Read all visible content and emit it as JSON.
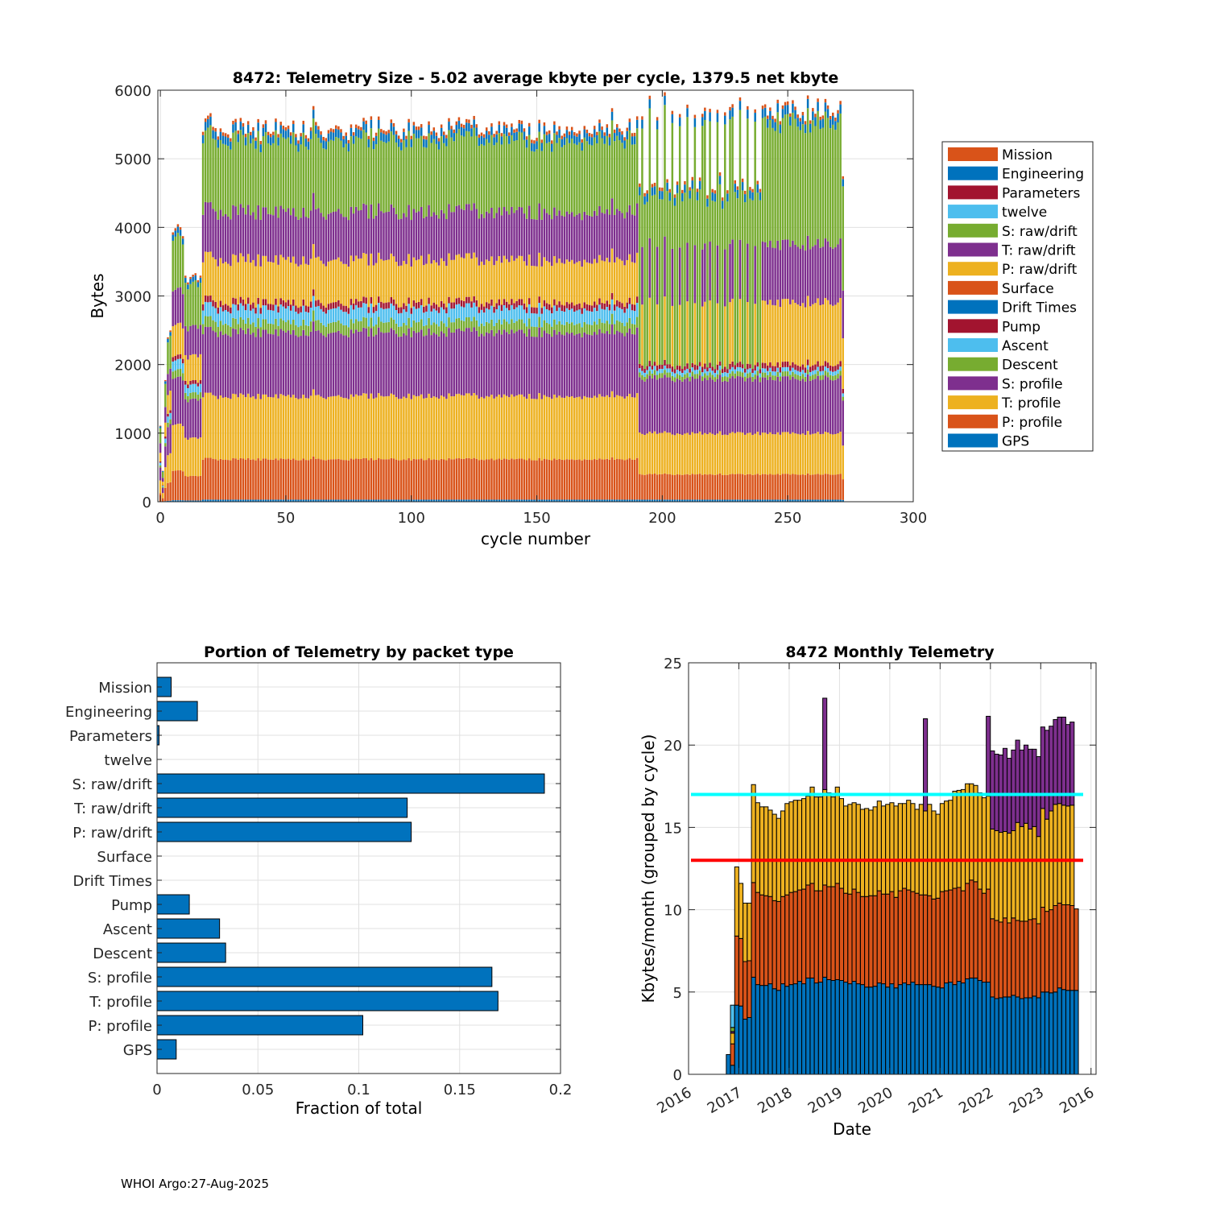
{
  "figure": {
    "footer": "WHOI Argo:27-Aug-2025"
  },
  "chart_data": [
    {
      "id": "telemetry-size",
      "type": "bar",
      "stacked": true,
      "title": "8472: Telemetry Size - 5.02 average kbyte per cycle, 1379.5 net kbyte",
      "xlabel": "cycle number",
      "ylabel": "Bytes",
      "xlim": [
        -1,
        300
      ],
      "ylim": [
        0,
        6000
      ],
      "xticks": [
        0,
        50,
        100,
        150,
        200,
        250,
        300
      ],
      "yticks": [
        0,
        1000,
        2000,
        3000,
        4000,
        5000,
        6000
      ],
      "grid": true,
      "legend_position": "outside-right",
      "n_cycles": 273,
      "series_order_bottom_to_top": [
        "GPS",
        "P: profile",
        "T: profile",
        "S: profile",
        "Descent",
        "Ascent",
        "Pump",
        "Drift Times",
        "Surface",
        "P: raw/drift",
        "T: raw/drift",
        "S: raw/drift",
        "twelve",
        "Parameters",
        "Engineering",
        "Mission"
      ],
      "legend": [
        {
          "name": "Mission",
          "color": "#D95319"
        },
        {
          "name": "Engineering",
          "color": "#0072BD"
        },
        {
          "name": "Parameters",
          "color": "#A2142F"
        },
        {
          "name": "twelve",
          "color": "#4DBEEE"
        },
        {
          "name": "S: raw/drift",
          "color": "#77AC30"
        },
        {
          "name": "T: raw/drift",
          "color": "#7E2F8E"
        },
        {
          "name": "P: raw/drift",
          "color": "#EDB120"
        },
        {
          "name": "Surface",
          "color": "#D95319"
        },
        {
          "name": "Drift Times",
          "color": "#0072BD"
        },
        {
          "name": "Pump",
          "color": "#A2142F"
        },
        {
          "name": "Ascent",
          "color": "#4DBEEE"
        },
        {
          "name": "Descent",
          "color": "#77AC30"
        },
        {
          "name": "S: profile",
          "color": "#7E2F8E"
        },
        {
          "name": "T: profile",
          "color": "#EDB120"
        },
        {
          "name": "P: profile",
          "color": "#D95319"
        },
        {
          "name": "GPS",
          "color": "#0072BD"
        }
      ],
      "typical_cycle_bytes": {
        "cycles_20_190": {
          "GPS": 30,
          "P: profile": 590,
          "T: profile": 920,
          "S: profile": 930,
          "Descent": 150,
          "Ascent": 200,
          "Pump": 90,
          "P: raw/drift": 620,
          "T: raw/drift": 700,
          "S: raw/drift": 1050,
          "Engineering": 120,
          "Mission": 50,
          "total": 5300
        },
        "cycles_191_273_short": {
          "GPS": 30,
          "P: profile": 370,
          "T: profile": 600,
          "S: profile": 800,
          "Descent": 70,
          "Ascent": 60,
          "Pump": 60,
          "S: raw/drift": 2450,
          "Engineering": 120,
          "Mission": 50,
          "total": 4500
        },
        "cycles_191_273_long": {
          "GPS": 30,
          "P: profile": 370,
          "T: profile": 600,
          "S: profile": 800,
          "Descent": 70,
          "Ascent": 60,
          "Pump": 80,
          "P: raw/drift": 900,
          "T: raw/drift": 850,
          "S: raw/drift": 1800,
          "Engineering": 130,
          "Mission": 50,
          "total": 5700
        }
      },
      "early_cycle_totals": [
        {
          "cycle": 0,
          "total": 1100
        },
        {
          "cycle": 1,
          "total": 450
        },
        {
          "cycle": 2,
          "total": 1780
        },
        {
          "cycle": 3,
          "total": 2400
        },
        {
          "cycle": 4,
          "total": 2500
        },
        {
          "cycle": 5,
          "total": 3950
        },
        {
          "cycle": 6,
          "total": 3980
        },
        {
          "cycle": 7,
          "total": 4020
        },
        {
          "cycle": 8,
          "total": 4030
        },
        {
          "cycle": 9,
          "total": 3900
        },
        {
          "cycle": 10,
          "total": 3300
        },
        {
          "cycle": 11,
          "total": 3200
        },
        {
          "cycle": 12,
          "total": 3300
        },
        {
          "cycle": 13,
          "total": 3320
        },
        {
          "cycle": 14,
          "total": 3320
        },
        {
          "cycle": 15,
          "total": 3250
        },
        {
          "cycle": 16,
          "total": 3320
        },
        {
          "cycle": 18,
          "total": 5630
        },
        {
          "cycle": 19,
          "total": 5620
        },
        {
          "cycle": 20,
          "total": 5630
        }
      ],
      "notable_peaks": [
        {
          "cycle": 61,
          "total": 5800
        },
        {
          "cycle": 180,
          "total": 5700
        },
        {
          "cycle": 217,
          "total": 5750
        },
        {
          "cycle": 227,
          "total": 5740
        },
        {
          "cycle": 246,
          "total": 5810
        },
        {
          "cycle": 258,
          "total": 5920
        },
        {
          "cycle": 265,
          "total": 5860
        },
        {
          "cycle": 271,
          "total": 5860
        }
      ],
      "last_cycle_total": 4700
    },
    {
      "id": "portion-by-packet",
      "type": "bar",
      "orientation": "horizontal",
      "title": "Portion of Telemetry by packet type",
      "xlabel": "Fraction of total",
      "ylabel": "",
      "xlim": [
        0,
        0.2
      ],
      "xticks": [
        0,
        0.05,
        0.1,
        0.15,
        0.2
      ],
      "xtick_labels": [
        "0",
        "0.05",
        "0.1",
        "0.15",
        "0.2"
      ],
      "grid": true,
      "bar_color": "#0072BD",
      "categories": [
        "Mission",
        "Engineering",
        "Parameters",
        "twelve",
        "S: raw/drift",
        "T: raw/drift",
        "P: raw/drift",
        "Surface",
        "Drift Times",
        "Pump",
        "Ascent",
        "Descent",
        "S: profile",
        "T: profile",
        "P: profile",
        "GPS"
      ],
      "values": [
        0.007,
        0.02,
        0.001,
        0.0,
        0.192,
        0.124,
        0.126,
        0.0,
        0.0,
        0.016,
        0.031,
        0.034,
        0.166,
        0.169,
        0.102,
        0.0095
      ]
    },
    {
      "id": "monthly-telemetry",
      "type": "bar",
      "stacked": true,
      "title": "8472 Monthly Telemetry",
      "xlabel": "Date",
      "ylabel": "Kbytes/month (grouped by cycle)",
      "ylim": [
        0,
        25
      ],
      "yticks": [
        0,
        5,
        10,
        15,
        20,
        25
      ],
      "xlim_years": [
        2016,
        2024.1
      ],
      "xtick_labels": [
        "2016",
        "2017",
        "2018",
        "2019",
        "2020",
        "2021",
        "2022",
        "2023",
        "2016"
      ],
      "grid": true,
      "reference_lines": [
        {
          "value": 17,
          "color": "#00FFFF"
        },
        {
          "value": 13,
          "color": "#FF0000"
        }
      ],
      "segment_colors": [
        "#0072BD",
        "#D95319",
        "#EDB120",
        "#7E2F8E",
        "#77AC30",
        "#4DBEEE"
      ],
      "months": [
        {
          "x": 2016.75,
          "segs": [
            1.2
          ]
        },
        {
          "x": 2016.833,
          "segs": [
            0.55,
            1.85,
            2.5,
            2.6,
            2.85,
            4.2
          ]
        },
        {
          "x": 2016.917,
          "segs": [
            4.2,
            4.2,
            4.2
          ]
        },
        {
          "x": 2017.0,
          "segs": [
            4.15,
            4.1,
            3.35
          ]
        },
        {
          "x": 2017.083,
          "segs": [
            3.35,
            3.5,
            3.55
          ]
        },
        {
          "x": 2017.167,
          "segs": [
            3.45,
            3.45,
            3.5
          ]
        },
        {
          "x": 2017.25,
          "segs": [
            5.9,
            5.75,
            5.95
          ]
        },
        {
          "x": 2017.333,
          "segs": [
            5.45,
            5.6,
            5.45
          ]
        },
        {
          "x": 2017.417,
          "segs": [
            5.4,
            5.5,
            5.35
          ]
        },
        {
          "x": 2017.5,
          "segs": [
            5.4,
            5.45,
            5.4
          ]
        },
        {
          "x": 2017.583,
          "segs": [
            5.5,
            5.3,
            5.25
          ]
        },
        {
          "x": 2017.667,
          "segs": [
            5.2,
            5.35,
            5.25
          ]
        },
        {
          "x": 2017.75,
          "segs": [
            5.1,
            5.4,
            5.05
          ]
        },
        {
          "x": 2017.833,
          "segs": [
            5.5,
            5.3,
            5.2
          ]
        },
        {
          "x": 2017.917,
          "segs": [
            5.35,
            5.55,
            5.55
          ]
        },
        {
          "x": 2018.0,
          "segs": [
            5.45,
            5.6,
            5.5
          ]
        },
        {
          "x": 2018.083,
          "segs": [
            5.5,
            5.6,
            5.55
          ]
        },
        {
          "x": 2018.167,
          "segs": [
            5.65,
            5.55,
            5.45
          ]
        },
        {
          "x": 2018.25,
          "segs": [
            5.5,
            5.75,
            5.5
          ]
        },
        {
          "x": 2018.333,
          "segs": [
            5.85,
            5.65,
            5.4
          ]
        },
        {
          "x": 2018.417,
          "segs": [
            5.85,
            5.75,
            5.85
          ]
        },
        {
          "x": 2018.5,
          "segs": [
            5.55,
            5.6,
            5.7
          ]
        },
        {
          "x": 2018.583,
          "segs": [
            5.6,
            5.55,
            5.7
          ]
        },
        {
          "x": 2018.667,
          "segs": [
            5.9,
            5.6,
            5.8,
            5.55
          ]
        },
        {
          "x": 2018.75,
          "segs": [
            5.75,
            5.65,
            5.7
          ]
        },
        {
          "x": 2018.833,
          "segs": [
            5.7,
            5.7,
            5.45
          ]
        },
        {
          "x": 2018.917,
          "segs": [
            5.75,
            5.85,
            5.85
          ]
        },
        {
          "x": 2019.0,
          "segs": [
            5.7,
            5.6,
            5.45
          ]
        },
        {
          "x": 2019.083,
          "segs": [
            5.6,
            5.4,
            5.3
          ]
        },
        {
          "x": 2019.167,
          "segs": [
            5.5,
            5.45,
            5.45
          ]
        },
        {
          "x": 2019.25,
          "segs": [
            5.65,
            5.6,
            5.25
          ]
        },
        {
          "x": 2019.333,
          "segs": [
            5.5,
            5.55,
            5.35
          ]
        },
        {
          "x": 2019.417,
          "segs": [
            5.45,
            5.35,
            5.3
          ]
        },
        {
          "x": 2019.5,
          "segs": [
            5.3,
            5.5,
            5.35
          ]
        },
        {
          "x": 2019.583,
          "segs": [
            5.3,
            5.55,
            5.2
          ]
        },
        {
          "x": 2019.667,
          "segs": [
            5.35,
            5.5,
            5.4
          ]
        },
        {
          "x": 2019.75,
          "segs": [
            5.55,
            5.6,
            5.45
          ]
        },
        {
          "x": 2019.833,
          "segs": [
            5.5,
            5.45,
            5.35
          ]
        },
        {
          "x": 2019.917,
          "segs": [
            5.3,
            5.65,
            5.45
          ]
        },
        {
          "x": 2020.0,
          "segs": [
            5.5,
            5.6,
            5.4
          ]
        },
        {
          "x": 2020.083,
          "segs": [
            5.25,
            5.5,
            5.55
          ]
        },
        {
          "x": 2020.167,
          "segs": [
            5.45,
            5.7,
            5.3
          ]
        },
        {
          "x": 2020.25,
          "segs": [
            5.55,
            5.75,
            5.15
          ]
        },
        {
          "x": 2020.333,
          "segs": [
            5.45,
            5.75,
            5.45
          ]
        },
        {
          "x": 2020.417,
          "segs": [
            5.6,
            5.5,
            5.35
          ]
        },
        {
          "x": 2020.5,
          "segs": [
            5.45,
            5.55,
            5.1
          ]
        },
        {
          "x": 2020.583,
          "segs": [
            5.45,
            5.45,
            5.5
          ]
        },
        {
          "x": 2020.667,
          "segs": [
            5.45,
            5.45,
            5.1,
            5.6
          ]
        },
        {
          "x": 2020.75,
          "segs": [
            5.45,
            5.4,
            5.55
          ]
        },
        {
          "x": 2020.833,
          "segs": [
            5.35,
            5.3,
            5.35
          ]
        },
        {
          "x": 2020.917,
          "segs": [
            5.3,
            5.4,
            5.1
          ]
        },
        {
          "x": 2021.0,
          "segs": [
            5.25,
            5.85,
            5.35
          ]
        },
        {
          "x": 2021.083,
          "segs": [
            5.55,
            5.6,
            5.45
          ]
        },
        {
          "x": 2021.167,
          "segs": [
            5.6,
            5.6,
            5.45
          ]
        },
        {
          "x": 2021.25,
          "segs": [
            5.45,
            5.85,
            5.9
          ]
        },
        {
          "x": 2021.333,
          "segs": [
            5.65,
            5.7,
            5.9
          ]
        },
        {
          "x": 2021.417,
          "segs": [
            5.55,
            5.6,
            6.15
          ]
        },
        {
          "x": 2021.5,
          "segs": [
            5.8,
            5.8,
            6.05
          ]
        },
        {
          "x": 2021.583,
          "segs": [
            5.85,
            5.95,
            5.85
          ]
        },
        {
          "x": 2021.667,
          "segs": [
            5.85,
            5.85,
            5.85
          ]
        },
        {
          "x": 2021.75,
          "segs": [
            5.7,
            5.55,
            5.85
          ]
        },
        {
          "x": 2021.833,
          "segs": [
            5.6,
            5.4,
            5.8
          ]
        },
        {
          "x": 2021.917,
          "segs": [
            5.6,
            5.65,
            5.65,
            4.85
          ]
        },
        {
          "x": 2022.0,
          "segs": [
            4.7,
            4.75,
            5.45,
            4.75
          ]
        },
        {
          "x": 2022.083,
          "segs": [
            4.6,
            4.75,
            5.45,
            4.65
          ]
        },
        {
          "x": 2022.167,
          "segs": [
            4.65,
            4.6,
            5.45,
            4.7
          ]
        },
        {
          "x": 2022.25,
          "segs": [
            4.7,
            4.8,
            5.25,
            5.05
          ]
        },
        {
          "x": 2022.333,
          "segs": [
            4.7,
            4.5,
            5.45,
            4.55
          ]
        },
        {
          "x": 2022.417,
          "segs": [
            4.8,
            4.7,
            5.3,
            4.9
          ]
        },
        {
          "x": 2022.5,
          "segs": [
            4.7,
            4.65,
            5.95,
            5.0
          ]
        },
        {
          "x": 2022.583,
          "segs": [
            4.6,
            4.7,
            5.75,
            4.65
          ]
        },
        {
          "x": 2022.667,
          "segs": [
            4.65,
            4.65,
            5.95,
            4.75
          ]
        },
        {
          "x": 2022.75,
          "segs": [
            4.65,
            4.75,
            5.5,
            4.85
          ]
        },
        {
          "x": 2022.833,
          "segs": [
            4.75,
            4.7,
            5.6,
            4.7
          ]
        },
        {
          "x": 2022.917,
          "segs": [
            4.65,
            4.5,
            5.3,
            4.85
          ]
        },
        {
          "x": 2023.0,
          "segs": [
            5.0,
            5.15,
            6.0,
            4.95
          ]
        },
        {
          "x": 2023.083,
          "segs": [
            5.0,
            4.9,
            5.6,
            5.4
          ]
        },
        {
          "x": 2023.167,
          "segs": [
            4.95,
            5.05,
            6.0,
            5.15
          ]
        },
        {
          "x": 2023.25,
          "segs": [
            5.0,
            5.25,
            6.15,
            5.15
          ]
        },
        {
          "x": 2023.333,
          "segs": [
            5.25,
            5.15,
            6.05,
            5.25
          ]
        },
        {
          "x": 2023.417,
          "segs": [
            5.15,
            5.15,
            6.05,
            5.35
          ]
        },
        {
          "x": 2023.5,
          "segs": [
            5.1,
            5.2,
            6.0,
            4.95
          ]
        },
        {
          "x": 2023.583,
          "segs": [
            5.1,
            5.15,
            6.1,
            5.05
          ]
        },
        {
          "x": 2023.667,
          "segs": [
            5.1,
            4.95
          ]
        }
      ],
      "month_colors_override": {
        "2016.833": [
          "#0072BD",
          "#D95319",
          "#EDB120",
          "#7E2F8E",
          "#77AC30",
          "#4DBEEE"
        ]
      }
    }
  ]
}
